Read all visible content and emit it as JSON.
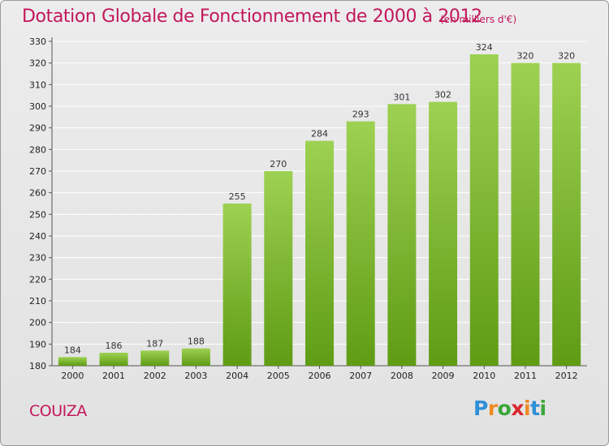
{
  "title": "Dotation Globale de Fonctionnement de 2000 à 2012",
  "unit": "(en milliers d'€)",
  "commune": "COUIZA",
  "logo": "Proxiti",
  "colors": {
    "bar_top": "#9dd152",
    "bar_bottom": "#5f9c14",
    "title": "#c2185b",
    "grid": "#ffffff"
  },
  "chart_data": {
    "type": "bar",
    "title": "Dotation Globale de Fonctionnement de 2000 à 2012",
    "ylabel": "en milliers d'€",
    "xlabel": "",
    "categories": [
      "2000",
      "2001",
      "2002",
      "2003",
      "2004",
      "2005",
      "2006",
      "2007",
      "2008",
      "2009",
      "2010",
      "2011",
      "2012"
    ],
    "values": [
      184,
      186,
      187,
      188,
      255,
      270,
      284,
      293,
      301,
      302,
      324,
      320,
      320
    ],
    "ylim": [
      180,
      330
    ],
    "yticks": [
      180,
      190,
      200,
      210,
      220,
      230,
      240,
      250,
      260,
      270,
      280,
      290,
      300,
      310,
      320,
      330
    ],
    "grid": true
  }
}
